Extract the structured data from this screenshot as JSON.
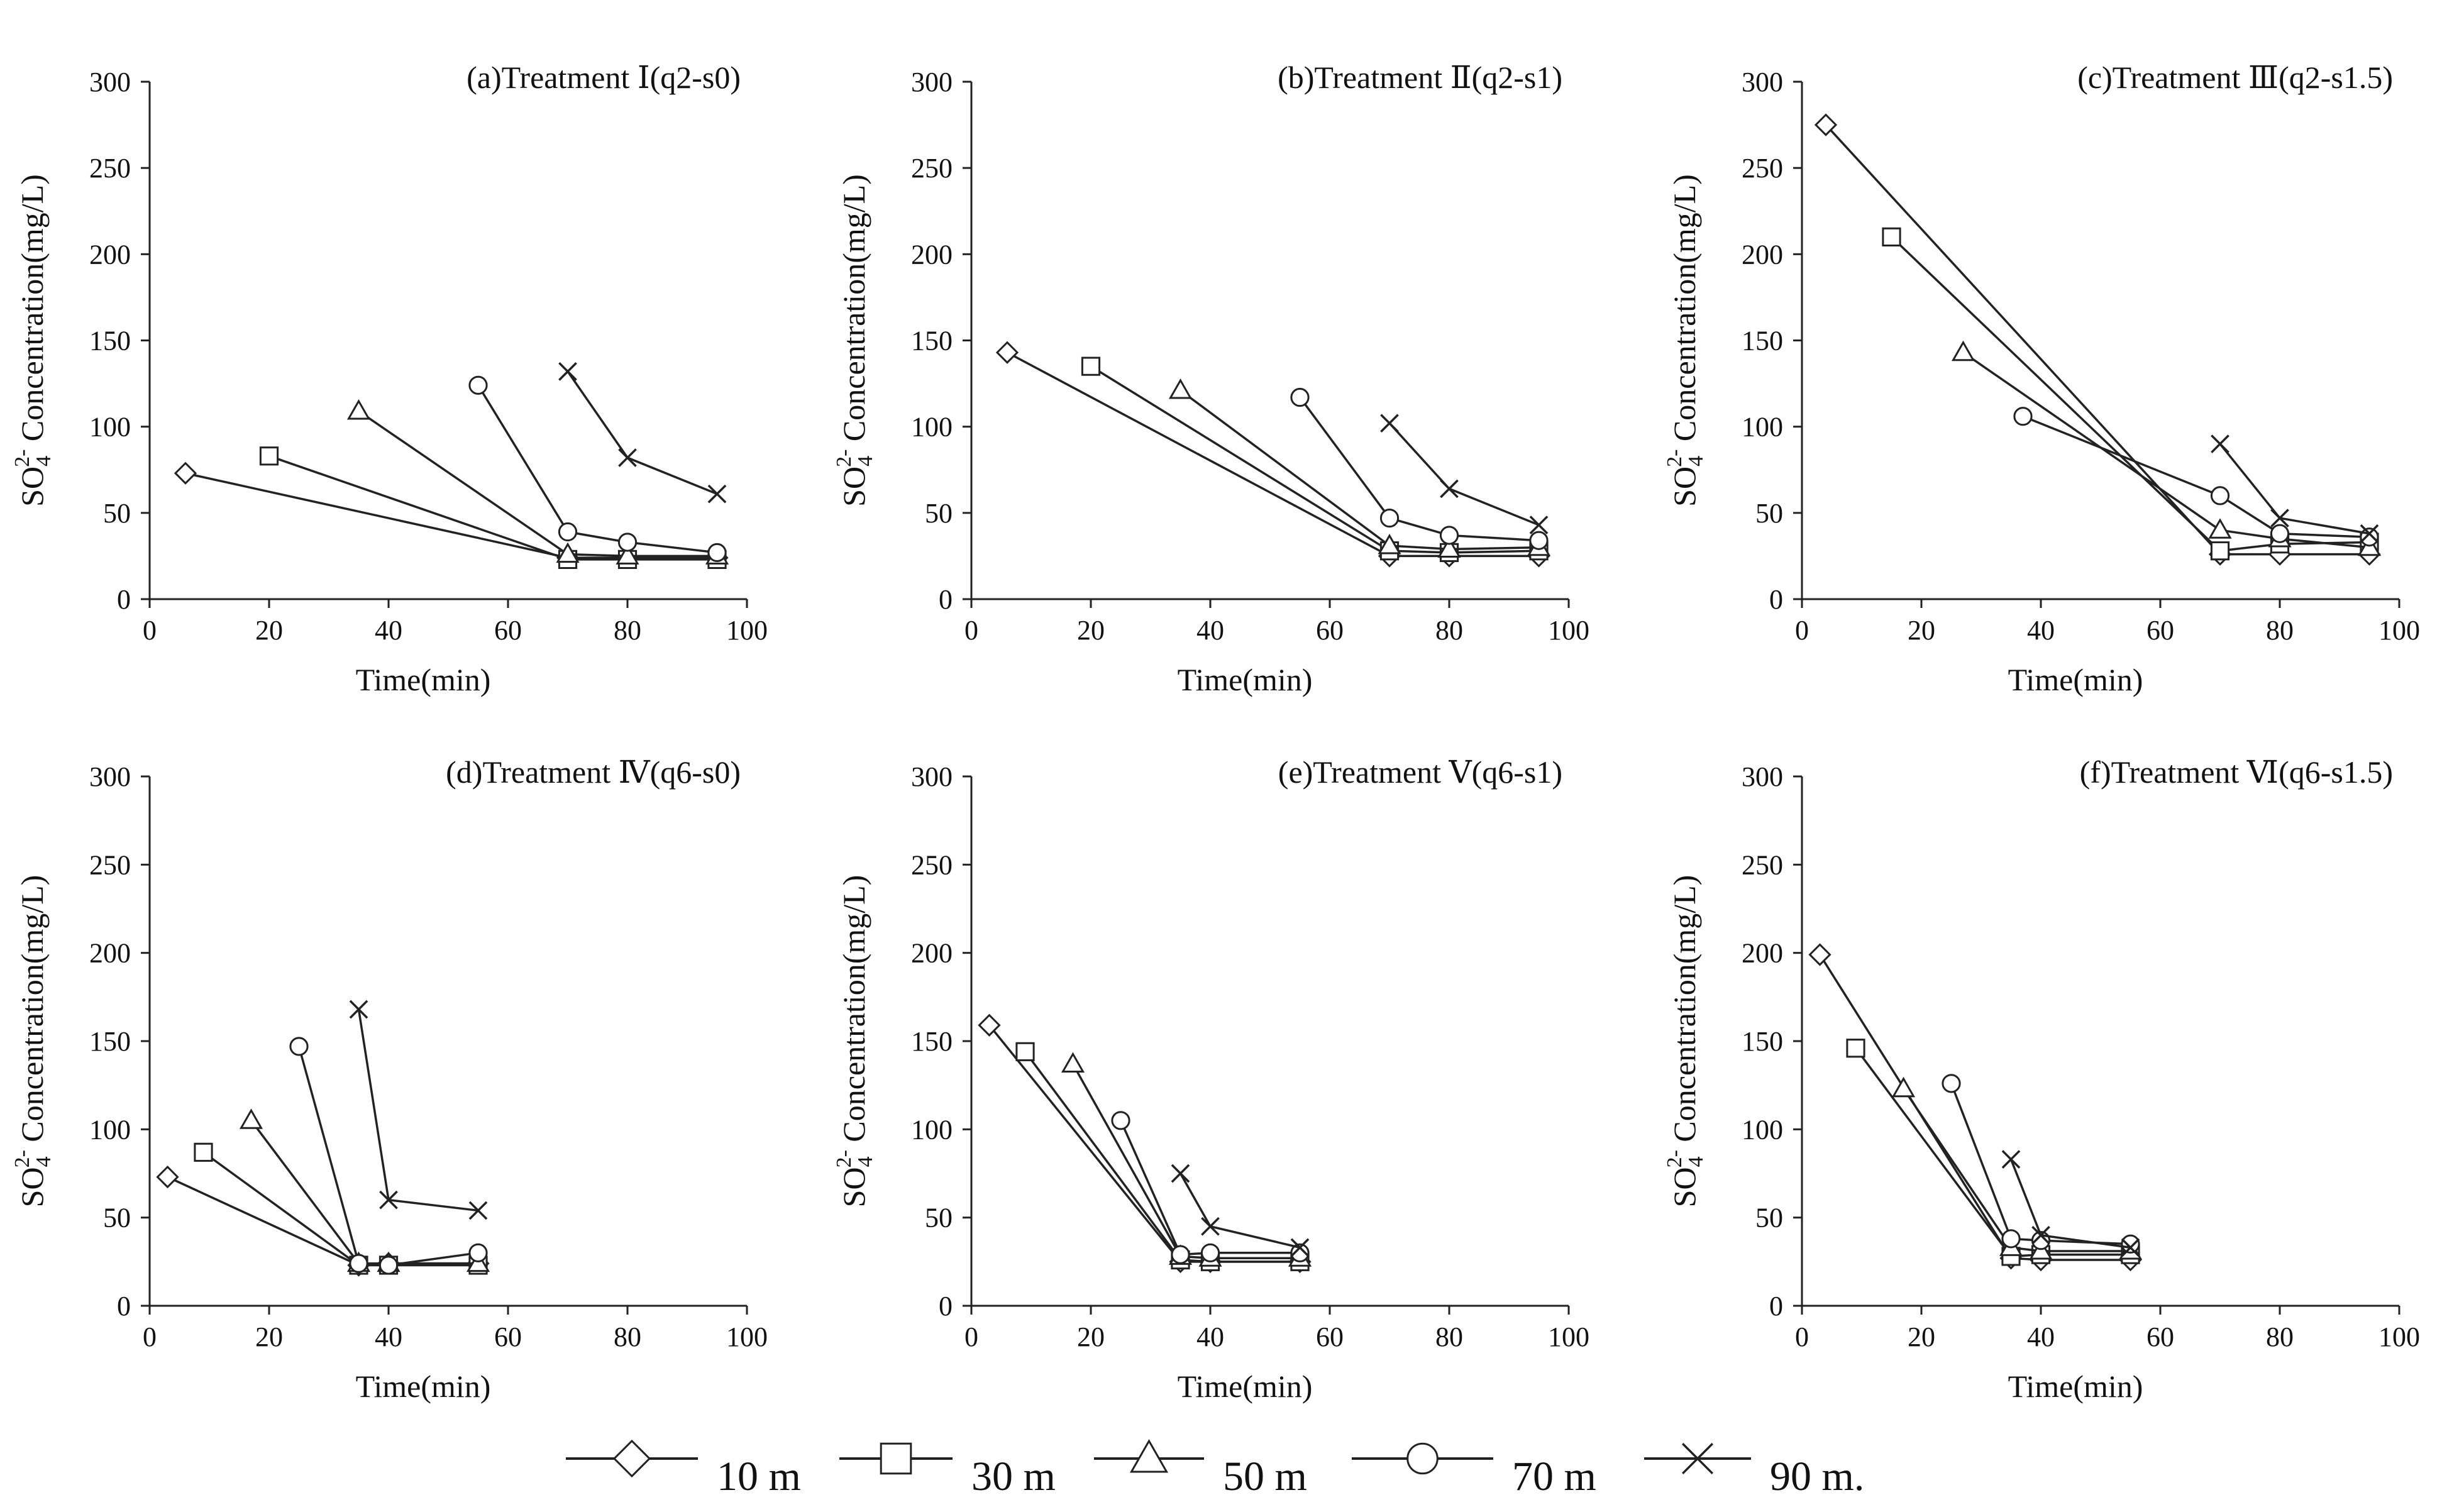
{
  "chart_data": {
    "type": "line",
    "series_names": [
      "10 m",
      "30 m",
      "50 m",
      "70 m",
      "90 m."
    ],
    "series_markers": [
      "diamond",
      "square",
      "triangle",
      "circle",
      "cross"
    ],
    "xlim": [
      0,
      100
    ],
    "ylim": [
      0,
      300
    ],
    "xticks": [
      0,
      20,
      40,
      60,
      80,
      100
    ],
    "yticks": [
      0,
      50,
      100,
      150,
      200,
      250,
      300
    ],
    "xlabel": "Time(min)",
    "ylabel_parts": {
      "base": "SO",
      "sub": "4",
      "sup": "2-",
      "rest": " Concentration(mg/L)"
    },
    "panels": [
      {
        "title": "(a)Treatment  Ⅰ(q2-s0)",
        "series": [
          {
            "name": "10 m",
            "points": [
              [
                6,
                73
              ],
              [
                70,
                24
              ],
              [
                80,
                24
              ],
              [
                95,
                24
              ]
            ]
          },
          {
            "name": "30 m",
            "points": [
              [
                20,
                83
              ],
              [
                70,
                23
              ],
              [
                80,
                23
              ],
              [
                95,
                23
              ]
            ]
          },
          {
            "name": "50 m",
            "points": [
              [
                35,
                109
              ],
              [
                70,
                26
              ],
              [
                80,
                25
              ],
              [
                95,
                25
              ]
            ]
          },
          {
            "name": "70 m",
            "points": [
              [
                55,
                124
              ],
              [
                70,
                39
              ],
              [
                80,
                33
              ],
              [
                95,
                27
              ]
            ]
          },
          {
            "name": "90 m.",
            "points": [
              [
                70,
                132
              ],
              [
                80,
                82
              ],
              [
                95,
                61
              ]
            ]
          }
        ]
      },
      {
        "title": "(b)Treatment  Ⅱ(q2-s1)",
        "series": [
          {
            "name": "10 m",
            "points": [
              [
                6,
                143
              ],
              [
                70,
                25
              ],
              [
                80,
                25
              ],
              [
                95,
                25
              ]
            ]
          },
          {
            "name": "30 m",
            "points": [
              [
                20,
                135
              ],
              [
                70,
                28
              ],
              [
                80,
                27
              ],
              [
                95,
                28
              ]
            ]
          },
          {
            "name": "50 m",
            "points": [
              [
                35,
                121
              ],
              [
                70,
                31
              ],
              [
                80,
                29
              ],
              [
                95,
                30
              ]
            ]
          },
          {
            "name": "70 m",
            "points": [
              [
                55,
                117
              ],
              [
                70,
                47
              ],
              [
                80,
                37
              ],
              [
                95,
                34
              ]
            ]
          },
          {
            "name": "90 m.",
            "points": [
              [
                70,
                102
              ],
              [
                80,
                64
              ],
              [
                95,
                43
              ]
            ]
          }
        ]
      },
      {
        "title": "(c)Treatment  Ⅲ(q2-s1.5)",
        "series": [
          {
            "name": "10 m",
            "points": [
              [
                4,
                275
              ],
              [
                70,
                26
              ],
              [
                80,
                26
              ],
              [
                95,
                26
              ]
            ]
          },
          {
            "name": "30 m",
            "points": [
              [
                15,
                210
              ],
              [
                70,
                28
              ],
              [
                80,
                32
              ],
              [
                95,
                33
              ]
            ]
          },
          {
            "name": "50 m",
            "points": [
              [
                27,
                143
              ],
              [
                70,
                40
              ],
              [
                80,
                35
              ],
              [
                95,
                30
              ]
            ]
          },
          {
            "name": "70 m",
            "points": [
              [
                37,
                106
              ],
              [
                70,
                60
              ],
              [
                80,
                38
              ],
              [
                95,
                36
              ]
            ]
          },
          {
            "name": "90 m.",
            "points": [
              [
                70,
                90
              ],
              [
                80,
                47
              ],
              [
                95,
                38
              ]
            ]
          }
        ]
      },
      {
        "title": "(d)Treatment  Ⅳ(q6-s0)",
        "series": [
          {
            "name": "10 m",
            "points": [
              [
                3,
                73
              ],
              [
                35,
                23
              ],
              [
                40,
                24
              ],
              [
                55,
                24
              ]
            ]
          },
          {
            "name": "30 m",
            "points": [
              [
                9,
                87
              ],
              [
                35,
                23
              ],
              [
                40,
                23
              ],
              [
                55,
                23
              ]
            ]
          },
          {
            "name": "50 m",
            "points": [
              [
                17,
                105
              ],
              [
                35,
                24
              ],
              [
                40,
                24
              ],
              [
                55,
                24
              ]
            ]
          },
          {
            "name": "70 m",
            "points": [
              [
                25,
                147
              ],
              [
                35,
                24
              ],
              [
                40,
                23
              ],
              [
                55,
                30
              ]
            ]
          },
          {
            "name": "90 m.",
            "points": [
              [
                35,
                168
              ],
              [
                40,
                60
              ],
              [
                55,
                54
              ]
            ]
          }
        ]
      },
      {
        "title": "(e)Treatment  Ⅴ(q6-s1)",
        "series": [
          {
            "name": "10 m",
            "points": [
              [
                3,
                159
              ],
              [
                35,
                25
              ],
              [
                40,
                25
              ],
              [
                55,
                25
              ]
            ]
          },
          {
            "name": "30 m",
            "points": [
              [
                9,
                144
              ],
              [
                35,
                26
              ],
              [
                40,
                25
              ],
              [
                55,
                25
              ]
            ]
          },
          {
            "name": "50 m",
            "points": [
              [
                17,
                137
              ],
              [
                35,
                28
              ],
              [
                40,
                27
              ],
              [
                55,
                27
              ]
            ]
          },
          {
            "name": "70 m",
            "points": [
              [
                25,
                105
              ],
              [
                35,
                29
              ],
              [
                40,
                30
              ],
              [
                55,
                30
              ]
            ]
          },
          {
            "name": "90 m.",
            "points": [
              [
                35,
                75
              ],
              [
                40,
                45
              ],
              [
                55,
                33
              ]
            ]
          }
        ]
      },
      {
        "title": "(f)Treatment  Ⅵ(q6-s1.5)",
        "series": [
          {
            "name": "10 m",
            "points": [
              [
                3,
                199
              ],
              [
                35,
                27
              ],
              [
                40,
                26
              ],
              [
                55,
                26
              ]
            ]
          },
          {
            "name": "30 m",
            "points": [
              [
                9,
                146
              ],
              [
                35,
                28
              ],
              [
                40,
                29
              ],
              [
                55,
                29
              ]
            ]
          },
          {
            "name": "50 m",
            "points": [
              [
                17,
                123
              ],
              [
                35,
                33
              ],
              [
                40,
                31
              ],
              [
                55,
                31
              ]
            ]
          },
          {
            "name": "70 m",
            "points": [
              [
                25,
                126
              ],
              [
                35,
                38
              ],
              [
                40,
                37
              ],
              [
                55,
                35
              ]
            ]
          },
          {
            "name": "90 m.",
            "points": [
              [
                35,
                83
              ],
              [
                40,
                40
              ],
              [
                55,
                33
              ]
            ]
          }
        ]
      }
    ]
  }
}
